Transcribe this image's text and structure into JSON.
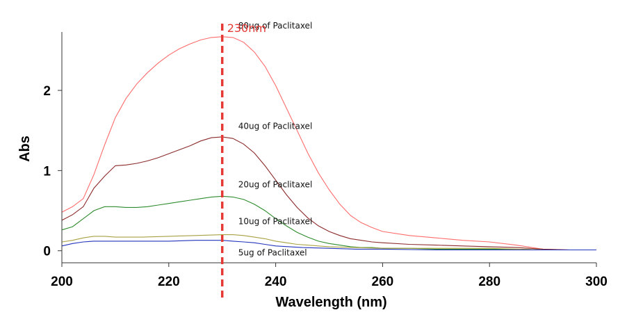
{
  "chart_data": {
    "type": "line",
    "title": "",
    "xlabel": "Wavelength (nm)",
    "ylabel": "Abs",
    "xlim": [
      200,
      300
    ],
    "ylim": [
      -0.15,
      2.85
    ],
    "xticks": [
      200,
      220,
      240,
      260,
      280,
      300
    ],
    "yticks": [
      0,
      1,
      2
    ],
    "x_tick_labels": [
      "200",
      "220",
      "240",
      "260",
      "280",
      "300"
    ],
    "y_tick_labels": [
      "0",
      "1",
      "2"
    ],
    "grid": false,
    "marker": {
      "x": 230,
      "label": "230nm",
      "color": "#e53935"
    },
    "series": [
      {
        "name": "80ug of Paclitaxel",
        "color": "#ff6b6b",
        "x": [
          200,
          202,
          204,
          206,
          208,
          210,
          212,
          214,
          216,
          218,
          220,
          222,
          224,
          226,
          228,
          230,
          232,
          234,
          236,
          238,
          240,
          242,
          244,
          246,
          248,
          250,
          252,
          254,
          256,
          258,
          260,
          265,
          270,
          275,
          280,
          285,
          290,
          295,
          300
        ],
        "values": [
          0.48,
          0.55,
          0.65,
          0.95,
          1.32,
          1.66,
          1.9,
          2.08,
          2.22,
          2.34,
          2.44,
          2.52,
          2.58,
          2.63,
          2.66,
          2.67,
          2.66,
          2.6,
          2.48,
          2.3,
          2.06,
          1.78,
          1.5,
          1.22,
          0.97,
          0.76,
          0.58,
          0.44,
          0.35,
          0.29,
          0.24,
          0.19,
          0.16,
          0.13,
          0.11,
          0.07,
          0.02,
          0.01,
          0.01
        ],
        "label_at": [
          233,
          2.77
        ]
      },
      {
        "name": "40ug of Paclitaxel",
        "color": "#8b2a2a",
        "x": [
          200,
          202,
          204,
          206,
          208,
          210,
          212,
          214,
          216,
          218,
          220,
          222,
          224,
          226,
          228,
          230,
          232,
          234,
          236,
          238,
          240,
          242,
          244,
          246,
          248,
          250,
          252,
          254,
          256,
          258,
          260,
          265,
          270,
          275,
          280,
          285,
          290,
          295,
          300
        ],
        "values": [
          0.38,
          0.45,
          0.55,
          0.78,
          0.93,
          1.06,
          1.07,
          1.09,
          1.12,
          1.16,
          1.21,
          1.26,
          1.31,
          1.37,
          1.41,
          1.42,
          1.4,
          1.33,
          1.22,
          1.06,
          0.88,
          0.7,
          0.54,
          0.41,
          0.31,
          0.24,
          0.19,
          0.15,
          0.13,
          0.11,
          0.1,
          0.08,
          0.07,
          0.06,
          0.05,
          0.04,
          0.02,
          0.01,
          0.01
        ],
        "label_at": [
          233,
          1.52
        ]
      },
      {
        "name": "20ug of Paclitaxel",
        "color": "#2e8b2e",
        "x": [
          200,
          202,
          204,
          206,
          208,
          210,
          212,
          214,
          216,
          218,
          220,
          222,
          224,
          226,
          228,
          230,
          232,
          234,
          236,
          238,
          240,
          242,
          244,
          246,
          248,
          250,
          252,
          254,
          256,
          258,
          260,
          265,
          270,
          275,
          280,
          285,
          290,
          295,
          300
        ],
        "values": [
          0.26,
          0.3,
          0.4,
          0.5,
          0.55,
          0.55,
          0.54,
          0.54,
          0.55,
          0.57,
          0.59,
          0.61,
          0.63,
          0.65,
          0.67,
          0.68,
          0.67,
          0.64,
          0.58,
          0.5,
          0.4,
          0.31,
          0.23,
          0.17,
          0.12,
          0.09,
          0.07,
          0.05,
          0.04,
          0.04,
          0.03,
          0.03,
          0.02,
          0.02,
          0.02,
          0.02,
          0.01,
          0.01,
          0.01
        ],
        "label_at": [
          233,
          0.79
        ]
      },
      {
        "name": "10ug of Paclitaxel",
        "color": "#a8a040",
        "x": [
          200,
          202,
          204,
          206,
          208,
          210,
          215,
          220,
          225,
          230,
          232,
          234,
          236,
          238,
          240,
          242,
          244,
          246,
          248,
          250,
          255,
          260,
          265,
          270,
          275,
          280,
          285,
          290,
          295,
          300
        ],
        "values": [
          0.11,
          0.13,
          0.16,
          0.18,
          0.18,
          0.17,
          0.17,
          0.18,
          0.19,
          0.2,
          0.2,
          0.19,
          0.17,
          0.15,
          0.12,
          0.1,
          0.08,
          0.07,
          0.06,
          0.05,
          0.04,
          0.03,
          0.03,
          0.03,
          0.03,
          0.03,
          0.02,
          0.01,
          0.01,
          0.01
        ],
        "label_at": [
          233,
          0.33
        ]
      },
      {
        "name": "5ug of Paclitaxel",
        "color": "#2233bb",
        "x": [
          200,
          202,
          204,
          206,
          208,
          210,
          215,
          220,
          225,
          230,
          232,
          234,
          236,
          238,
          240,
          245,
          250,
          255,
          260,
          270,
          280,
          290,
          300
        ],
        "values": [
          0.06,
          0.09,
          0.11,
          0.12,
          0.12,
          0.12,
          0.12,
          0.12,
          0.13,
          0.13,
          0.12,
          0.11,
          0.1,
          0.08,
          0.06,
          0.04,
          0.03,
          0.02,
          0.02,
          0.01,
          0.01,
          0.01,
          0.01
        ],
        "label_at": [
          233,
          -0.06
        ]
      }
    ]
  }
}
